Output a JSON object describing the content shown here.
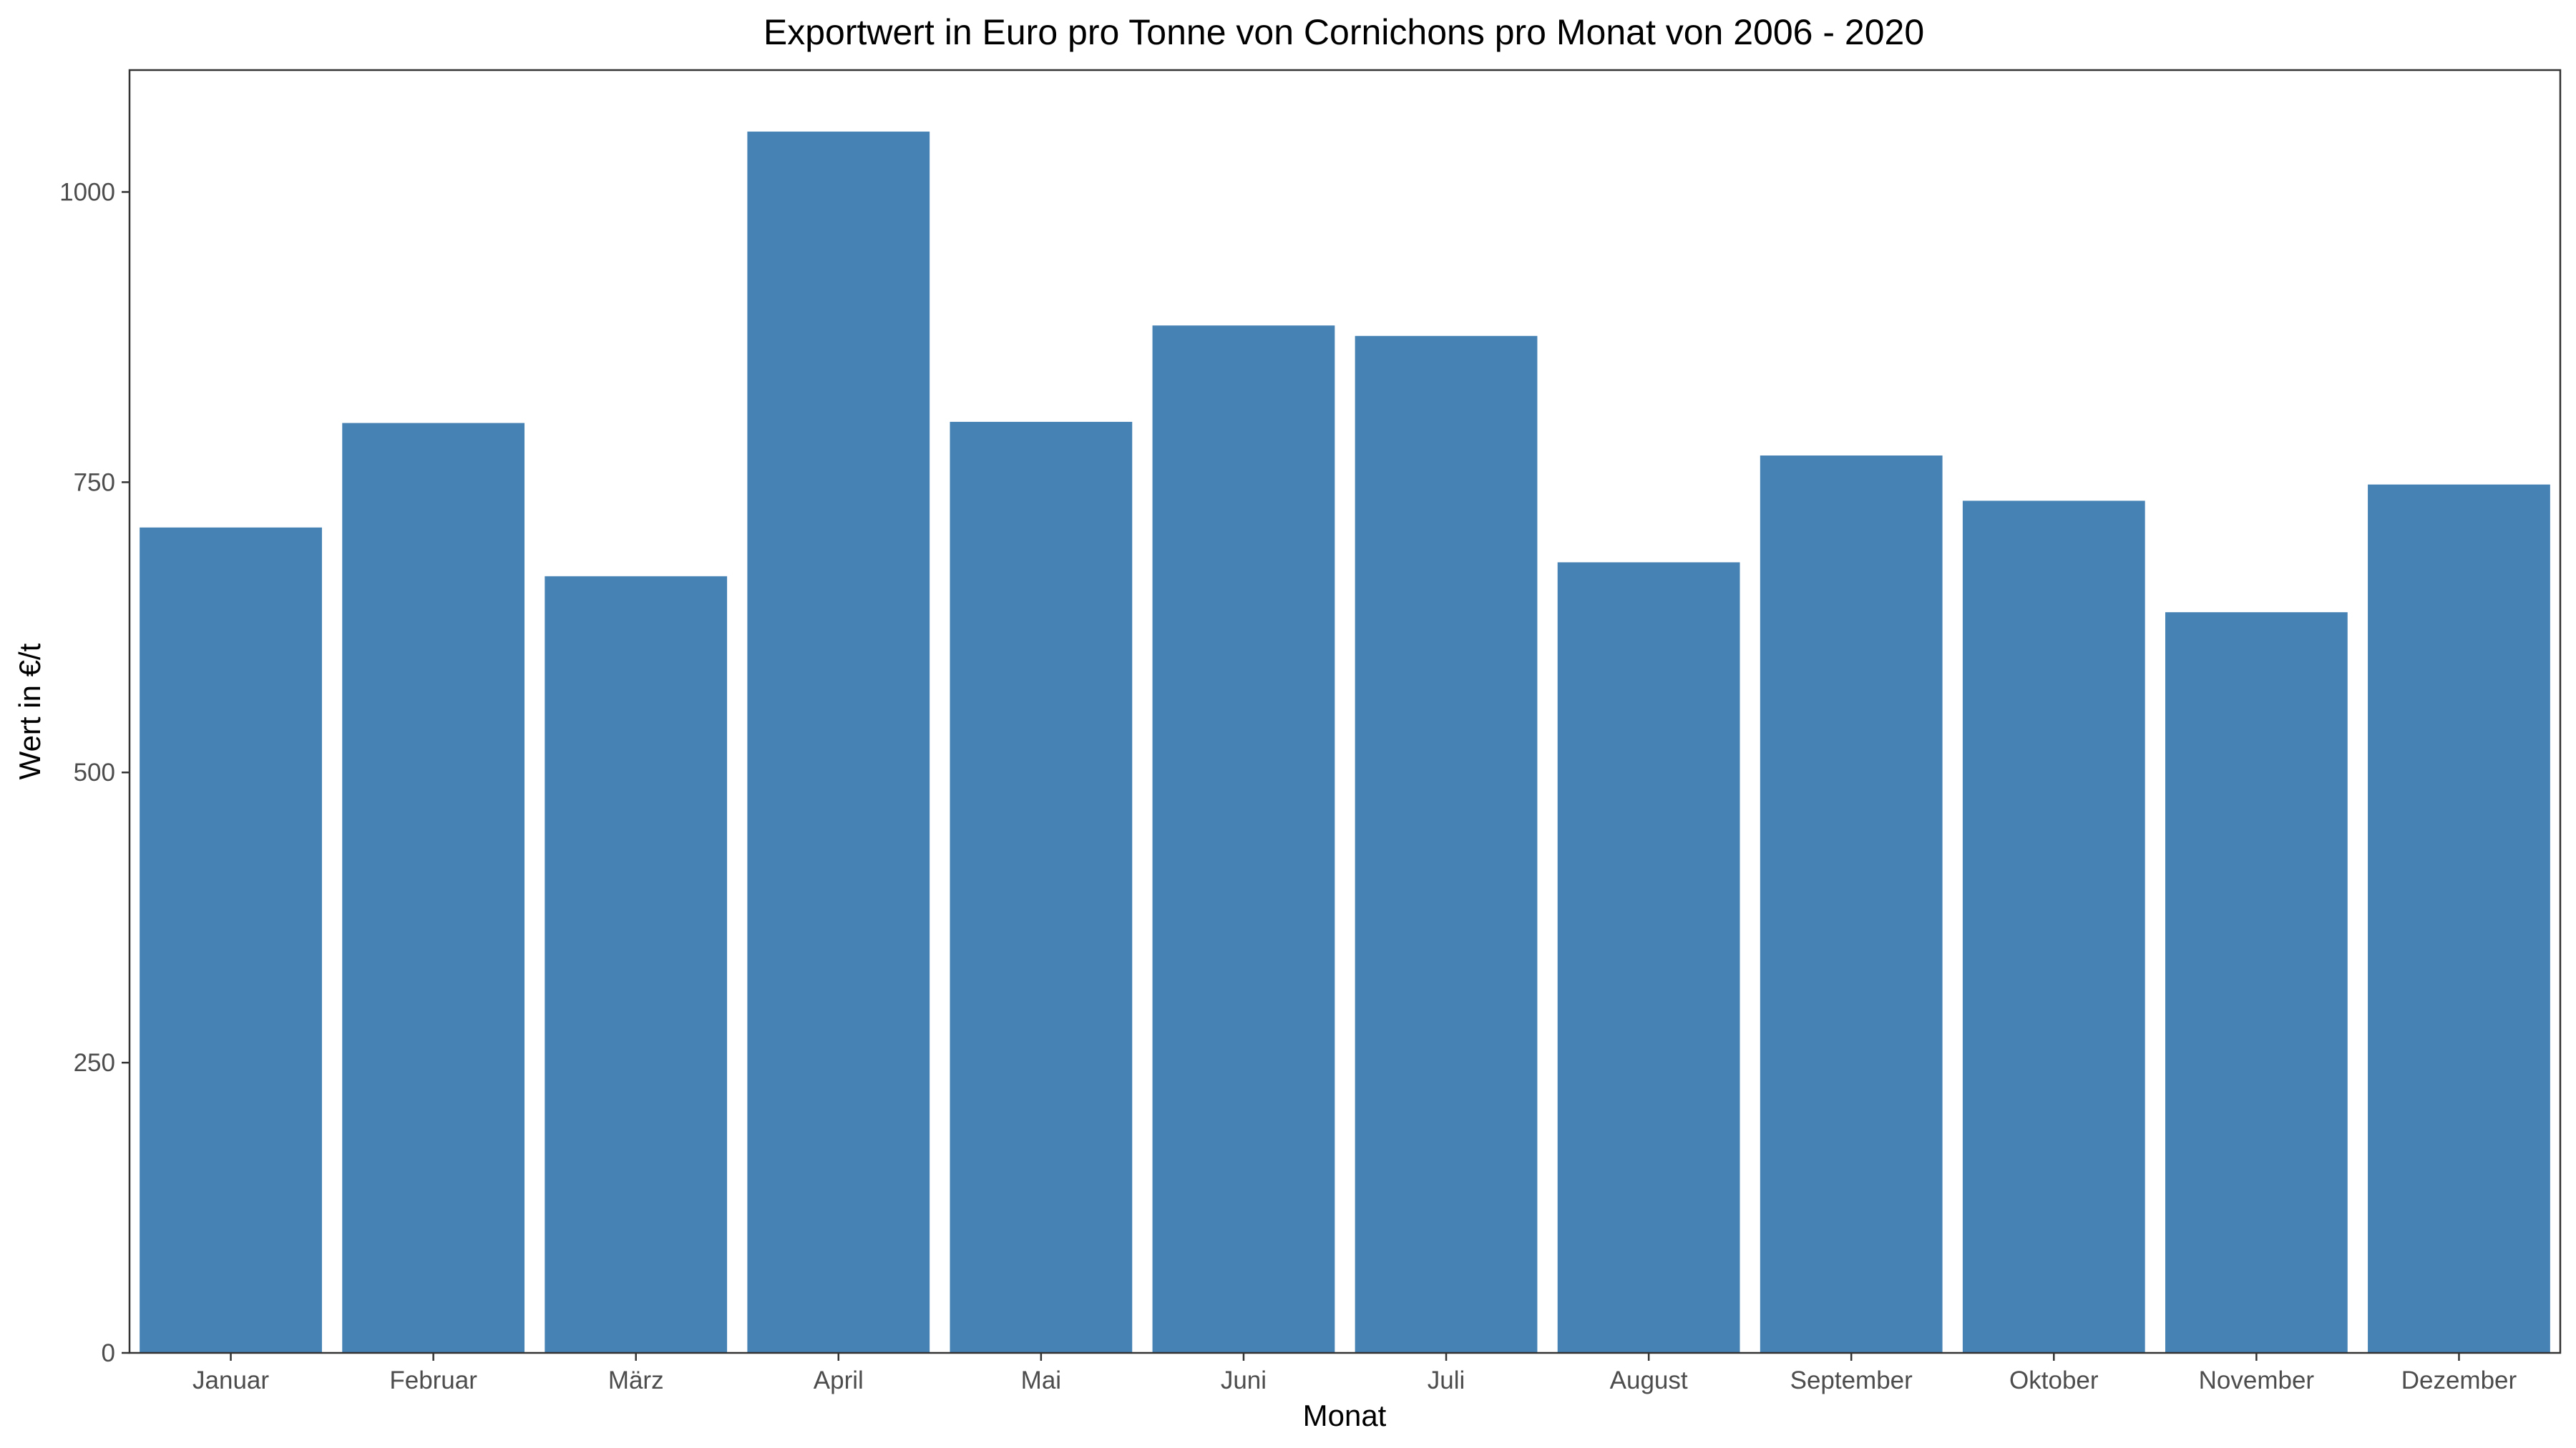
{
  "chart_data": {
    "type": "bar",
    "title": "Exportwert in Euro pro Tonne von Cornichons pro Monat von 2006 - 2020",
    "xlabel": "Monat",
    "ylabel": "Wert in €/t",
    "categories": [
      "Januar",
      "Februar",
      "März",
      "April",
      "Mai",
      "Juni",
      "Juli",
      "August",
      "September",
      "Oktober",
      "November",
      "Dezember"
    ],
    "values": [
      711,
      801,
      669,
      1052,
      802,
      885,
      876,
      681,
      773,
      734,
      638,
      748
    ],
    "ylim": [
      0,
      1105
    ],
    "yticks": [
      0,
      250,
      500,
      750,
      1000
    ],
    "bar_color": "#4682B4",
    "grid": false,
    "legend": "none"
  }
}
